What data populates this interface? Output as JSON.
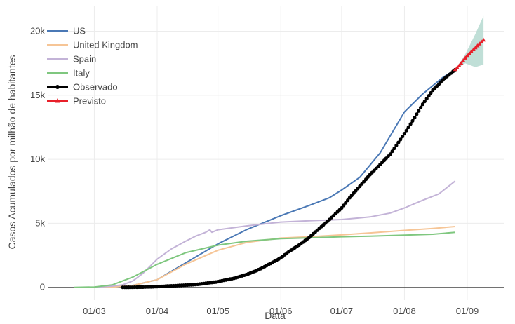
{
  "chart_data": {
    "type": "line",
    "xlabel": "Data",
    "ylabel": "Casos Acumulados por milhão de habitantes",
    "x_ticks": [
      "2020-03-01",
      "2020-04-01",
      "2020-05-01",
      "2020-06-01",
      "2020-07-01",
      "2020-08-01",
      "2020-09-01"
    ],
    "x_tick_labels": [
      "01/03",
      "01/04",
      "01/05",
      "01/06",
      "01/07",
      "01/08",
      "01/09"
    ],
    "xlim": [
      "2020-02-07",
      "2020-09-19"
    ],
    "y_ticks": [
      0,
      5000,
      10000,
      15000,
      20000
    ],
    "y_tick_labels": [
      "0",
      "5k",
      "10k",
      "15k",
      "20k"
    ],
    "ylim": [
      -1000,
      22000
    ],
    "grid": true,
    "legend_position": "top-left",
    "series": [
      {
        "name": "US",
        "color": "#4a78b5",
        "style": "line",
        "x": [
          "2020-03-01",
          "2020-03-10",
          "2020-03-20",
          "2020-04-01",
          "2020-04-15",
          "2020-05-01",
          "2020-05-15",
          "2020-06-01",
          "2020-06-15",
          "2020-06-25",
          "2020-07-01",
          "2020-07-10",
          "2020-07-20",
          "2020-08-01",
          "2020-08-10",
          "2020-08-20",
          "2020-08-26"
        ],
        "y": [
          0,
          10,
          150,
          600,
          1900,
          3400,
          4500,
          5600,
          6400,
          7000,
          7600,
          8600,
          10500,
          13700,
          15100,
          16400,
          17000
        ]
      },
      {
        "name": "United Kingdom",
        "color": "#f6c596",
        "style": "line",
        "x": [
          "2020-03-01",
          "2020-03-10",
          "2020-03-20",
          "2020-04-01",
          "2020-04-15",
          "2020-05-01",
          "2020-05-15",
          "2020-06-01",
          "2020-06-15",
          "2020-07-01",
          "2020-07-15",
          "2020-08-01",
          "2020-08-15",
          "2020-08-26"
        ],
        "y": [
          0,
          20,
          150,
          600,
          1800,
          2900,
          3500,
          3850,
          3950,
          4100,
          4250,
          4450,
          4600,
          4750
        ]
      },
      {
        "name": "Spain",
        "color": "#c3b3d7",
        "style": "line",
        "x": [
          "2020-03-01",
          "2020-03-10",
          "2020-03-15",
          "2020-03-20",
          "2020-03-25",
          "2020-04-01",
          "2020-04-08",
          "2020-04-15",
          "2020-04-20",
          "2020-04-25",
          "2020-04-27",
          "2020-04-28",
          "2020-05-01",
          "2020-05-15",
          "2020-06-01",
          "2020-06-15",
          "2020-07-01",
          "2020-07-15",
          "2020-07-25",
          "2020-08-01",
          "2020-08-10",
          "2020-08-18",
          "2020-08-22",
          "2020-08-26"
        ],
        "y": [
          0,
          100,
          200,
          500,
          1100,
          2200,
          3000,
          3600,
          4000,
          4300,
          4500,
          4300,
          4500,
          4800,
          5100,
          5200,
          5300,
          5500,
          5800,
          6200,
          6800,
          7300,
          7800,
          8300
        ]
      },
      {
        "name": "Italy",
        "color": "#7fc77f",
        "style": "line",
        "x": [
          "2020-02-20",
          "2020-03-01",
          "2020-03-10",
          "2020-03-20",
          "2020-04-01",
          "2020-04-15",
          "2020-05-01",
          "2020-05-15",
          "2020-06-01",
          "2020-06-15",
          "2020-07-01",
          "2020-07-15",
          "2020-08-01",
          "2020-08-15",
          "2020-08-26"
        ],
        "y": [
          0,
          30,
          200,
          800,
          1800,
          2700,
          3300,
          3600,
          3800,
          3870,
          3950,
          4000,
          4080,
          4150,
          4300
        ]
      },
      {
        "name": "Observado",
        "color": "#000000",
        "style": "line+markers",
        "x": [
          "2020-03-15",
          "2020-03-25",
          "2020-04-01",
          "2020-04-10",
          "2020-04-20",
          "2020-04-30",
          "2020-05-05",
          "2020-05-10",
          "2020-05-15",
          "2020-05-20",
          "2020-05-25",
          "2020-06-01",
          "2020-06-05",
          "2020-06-10",
          "2020-06-15",
          "2020-06-20",
          "2020-06-25",
          "2020-07-01",
          "2020-07-05",
          "2020-07-10",
          "2020-07-15",
          "2020-07-20",
          "2020-07-25",
          "2020-08-01",
          "2020-08-05",
          "2020-08-10",
          "2020-08-15",
          "2020-08-20",
          "2020-08-26"
        ],
        "y": [
          0,
          20,
          60,
          130,
          220,
          420,
          580,
          750,
          1000,
          1300,
          1700,
          2300,
          2800,
          3300,
          3900,
          4600,
          5300,
          6200,
          7000,
          7900,
          8800,
          9600,
          10400,
          12000,
          13000,
          14300,
          15400,
          16200,
          17000
        ]
      },
      {
        "name": "Previsto",
        "color": "#e8202a",
        "style": "line+markers",
        "x": [
          "2020-08-26",
          "2020-08-28",
          "2020-08-30",
          "2020-09-01",
          "2020-09-03",
          "2020-09-05",
          "2020-09-07",
          "2020-09-09"
        ],
        "y": [
          17000,
          17300,
          17700,
          18100,
          18400,
          18700,
          19000,
          19300
        ]
      }
    ],
    "forecast_band": {
      "color": "#b5d9d0",
      "x": [
        "2020-08-26",
        "2020-08-31",
        "2020-09-05",
        "2020-09-09"
      ],
      "upper": [
        17000,
        18200,
        19800,
        21200
      ],
      "lower": [
        17000,
        17500,
        17200,
        17400
      ]
    }
  }
}
